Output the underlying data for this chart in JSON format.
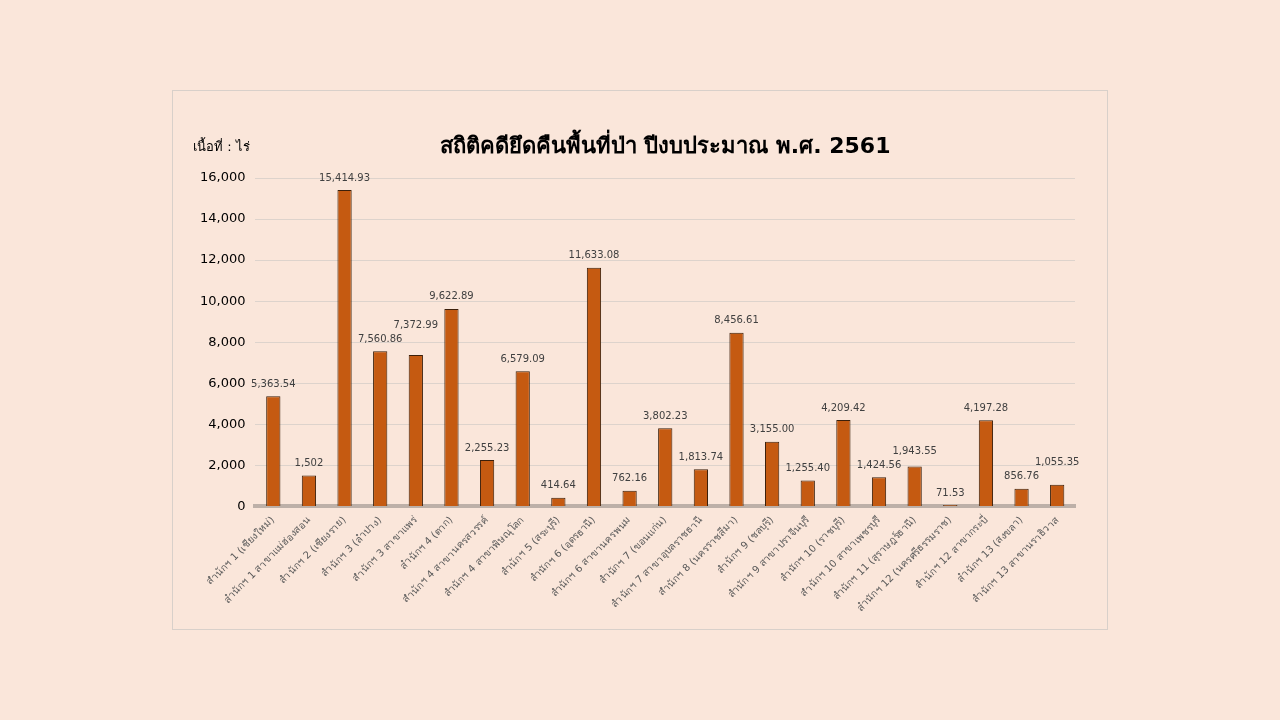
{
  "chart_data": {
    "type": "bar",
    "title": "สถิติคดียึดคืนพื้นที่ป่า ปีงบประมาณ พ.ศ. 2561",
    "ylabel": "เนื้อที่ : ไร่",
    "categories": [
      "สำนักฯ 1 (เชียงใหม่)",
      "สำนักฯ 1 สาขาแม่ฮ่องสอน",
      "สำนักฯ 2 (เชียงราย)",
      "สำนักฯ 3 (ลำปาง)",
      "สำนักฯ 3 สาขาแพร่",
      "สำนักฯ 4 (ตาก)",
      "สำนักฯ 4 สาขานครสวรรค์",
      "สำนักฯ 4 สาขาพิษณุโลก",
      "สำนักฯ 5 (สระบุรี)",
      "สำนักฯ 6 (อุดรธานี)",
      "สำนักฯ 6 สาขานครพนม",
      "สำนักฯ 7 (ขอนแก่น)",
      "สำนักฯ 7 สาขาอุบลราชธานี",
      "สำนักฯ 8 (นครราชสีมา)",
      "สำนักฯ 9 (ชลบุรี)",
      "สำนักฯ 9 สาขาปราจีนบุรี",
      "สำนักฯ 10 (ราชบุรี)",
      "สำนักฯ 10 สาขาเพชรบุรี",
      "สำนักฯ 11 (สุราษฎร์ธานี)",
      "สำนักฯ 12 (นครศรีธรรมราช)",
      "สำนักฯ 12 สาขากระบี่",
      "สำนักฯ 13 (สงขลา)",
      "สำนักฯ 13 สาขานราธิวาส"
    ],
    "values": [
      5363.54,
      1502,
      15414.93,
      7560.86,
      7372.99,
      9622.89,
      2255.23,
      6579.09,
      414.64,
      11633.08,
      762.16,
      3802.23,
      1813.74,
      8456.61,
      3155.0,
      1255.4,
      4209.42,
      1424.56,
      1943.55,
      71.53,
      4197.28,
      856.76,
      1055.35
    ],
    "value_labels": [
      "5,363.54",
      "1,502",
      "15,414.93",
      "7,560.86",
      "7,372.99",
      "9,622.89",
      "2,255.23",
      "6,579.09",
      "414.64",
      "11,633.08",
      "762.16",
      "3,802.23",
      "1,813.74",
      "8,456.61",
      "3,155.00",
      "1,255.40",
      "4,209.42",
      "1,424.56",
      "1,943.55",
      "71.53",
      "4,197.28",
      "856.76",
      "1,055.35"
    ],
    "color": "#c55a11",
    "ylim": [
      0,
      16000
    ],
    "yticks": [
      {
        "value": 0,
        "label": "0"
      },
      {
        "value": 2000,
        "label": "2,000"
      },
      {
        "value": 4000,
        "label": "4,000"
      },
      {
        "value": 6000,
        "label": "6,000"
      },
      {
        "value": 8000,
        "label": "8,000"
      },
      {
        "value": 10000,
        "label": "10,000"
      },
      {
        "value": 12000,
        "label": "12,000"
      },
      {
        "value": 14000,
        "label": "14,000"
      },
      {
        "value": 16000,
        "label": "16,000"
      }
    ],
    "grid": "y"
  }
}
